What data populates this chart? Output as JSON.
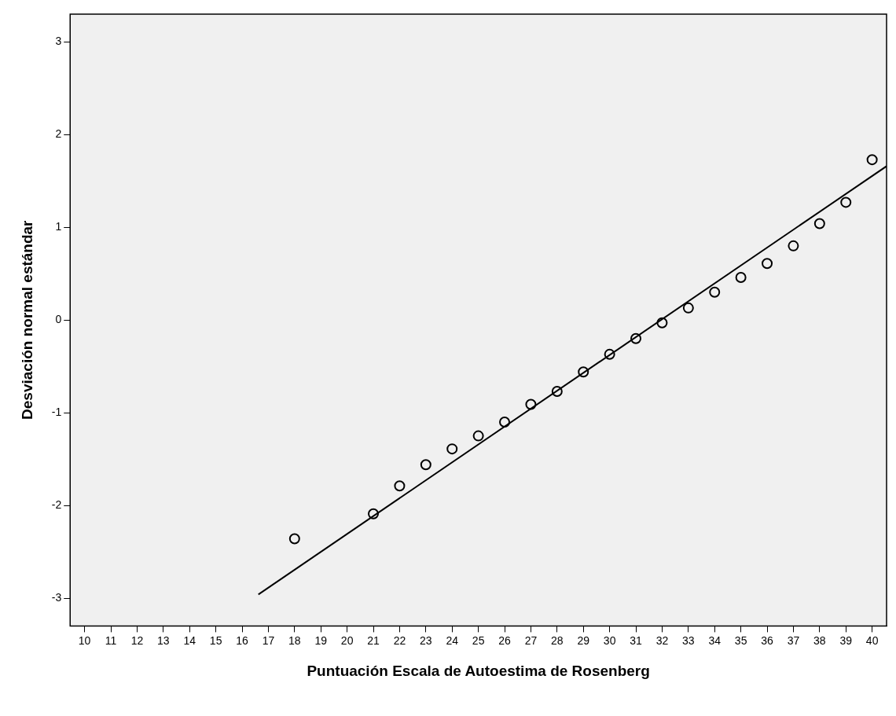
{
  "chart_data": {
    "type": "scatter",
    "xlabel": "Puntuación Escala de Autoestima de Rosenberg",
    "ylabel": "Desviación normal estándar",
    "x": [
      18,
      21,
      22,
      23,
      24,
      25,
      26,
      27,
      28,
      29,
      30,
      31,
      32,
      33,
      34,
      35,
      36,
      37,
      38,
      39,
      40
    ],
    "series": [
      {
        "color": "#000000",
        "marker": "circle",
        "values": [
          -2.36,
          -2.09,
          -1.79,
          -1.56,
          -1.39,
          -1.25,
          -1.1,
          -0.91,
          -0.77,
          -0.56,
          -0.37,
          -0.2,
          -0.03,
          0.13,
          0.3,
          0.46,
          0.61,
          0.8,
          1.04,
          1.27,
          1.73
        ]
      },
      {
        "type": "line",
        "marker": "none",
        "color": "#000000",
        "x": [
          16.62,
          40.55
        ],
        "values": [
          -2.96,
          1.66
        ]
      }
    ],
    "xlim": [
      9.45,
      40.55
    ],
    "ylim": [
      -3.3,
      3.3
    ],
    "xticks": [
      10,
      11,
      12,
      13,
      14,
      15,
      16,
      17,
      18,
      19,
      20,
      21,
      22,
      23,
      24,
      25,
      26,
      27,
      28,
      29,
      30,
      31,
      32,
      33,
      34,
      35,
      36,
      37,
      38,
      39,
      40
    ],
    "yticks": [
      -3,
      -2,
      -1,
      0,
      1,
      2,
      3
    ],
    "grid": false,
    "legend": false
  }
}
